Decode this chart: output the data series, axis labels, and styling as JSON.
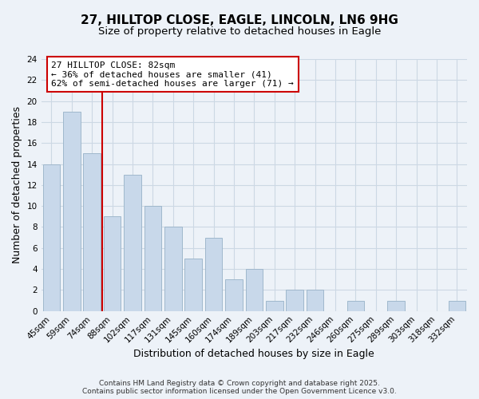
{
  "title": "27, HILLTOP CLOSE, EAGLE, LINCOLN, LN6 9HG",
  "subtitle": "Size of property relative to detached houses in Eagle",
  "xlabel": "Distribution of detached houses by size in Eagle",
  "ylabel": "Number of detached properties",
  "categories": [
    "45sqm",
    "59sqm",
    "74sqm",
    "88sqm",
    "102sqm",
    "117sqm",
    "131sqm",
    "145sqm",
    "160sqm",
    "174sqm",
    "189sqm",
    "203sqm",
    "217sqm",
    "232sqm",
    "246sqm",
    "260sqm",
    "275sqm",
    "289sqm",
    "303sqm",
    "318sqm",
    "332sqm"
  ],
  "values": [
    14,
    19,
    15,
    9,
    13,
    10,
    8,
    5,
    7,
    3,
    4,
    1,
    2,
    2,
    0,
    1,
    0,
    1,
    0,
    0,
    1
  ],
  "bar_color": "#c8d8ea",
  "bar_edge_color": "#a0b8cc",
  "ref_line_color": "#cc0000",
  "annotation_text": "27 HILLTOP CLOSE: 82sqm\n← 36% of detached houses are smaller (41)\n62% of semi-detached houses are larger (71) →",
  "annotation_box_facecolor": "#ffffff",
  "annotation_box_edgecolor": "#cc0000",
  "ylim": [
    0,
    24
  ],
  "yticks": [
    0,
    2,
    4,
    6,
    8,
    10,
    12,
    14,
    16,
    18,
    20,
    22,
    24
  ],
  "grid_color": "#ccd8e4",
  "background_color": "#edf2f8",
  "footer_text": "Contains HM Land Registry data © Crown copyright and database right 2025.\nContains public sector information licensed under the Open Government Licence v3.0.",
  "title_fontsize": 11,
  "subtitle_fontsize": 9.5,
  "axis_label_fontsize": 9,
  "tick_fontsize": 7.5,
  "annotation_fontsize": 8,
  "footer_fontsize": 6.5
}
